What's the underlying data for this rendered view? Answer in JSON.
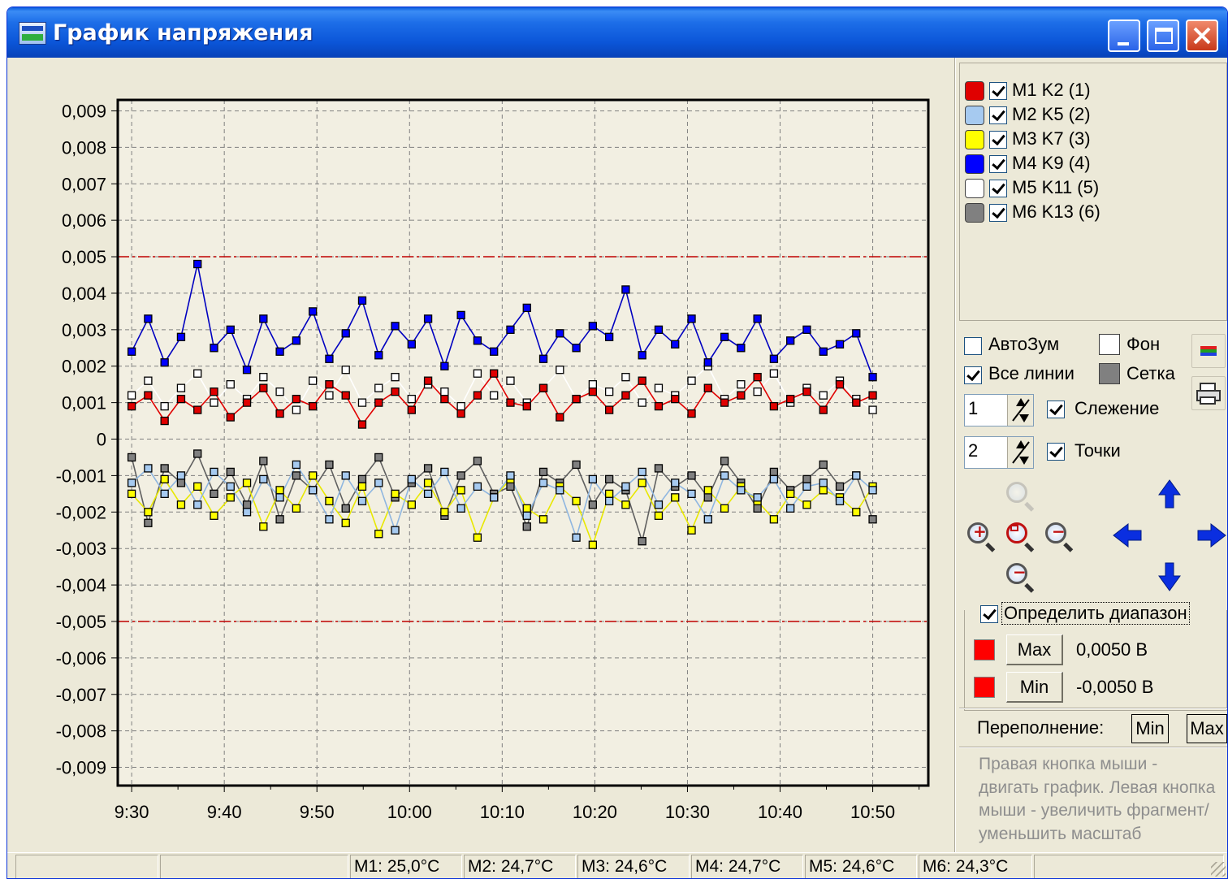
{
  "window": {
    "title": "График напряжения"
  },
  "legend": {
    "items": [
      {
        "label": "M1 K2 (1)",
        "color": "#e00000",
        "checked": true
      },
      {
        "label": "M2 K5 (2)",
        "color": "#a6caf0",
        "checked": true
      },
      {
        "label": "M3 K7 (3)",
        "color": "#ffff00",
        "checked": true
      },
      {
        "label": "M4 K9 (4)",
        "color": "#0000ff",
        "checked": true
      },
      {
        "label": "M5 K11 (5)",
        "color": "#ffffff",
        "checked": true
      },
      {
        "label": "M6 K13 (6)",
        "color": "#808080",
        "checked": true
      }
    ]
  },
  "options": {
    "autozoom_label": "АвтоЗум",
    "autozoom_checked": false,
    "background_label": "Фон",
    "all_lines_label": "Все линии",
    "all_lines_checked": true,
    "grid_label": "Сетка",
    "tracking_value": "1",
    "tracking_label": "Слежение",
    "tracking_checked": true,
    "points_value": "2",
    "points_label": "Точки",
    "points_checked": true
  },
  "range": {
    "define_label": "Определить диапазон",
    "define_checked": true,
    "max_button": "Max",
    "max_value": "0,0050 В",
    "min_button": "Min",
    "min_value": "-0,0050 В",
    "marker_color": "#ff0000"
  },
  "overflow": {
    "label": "Переполнение:",
    "min_button": "Min",
    "max_button": "Max"
  },
  "hint": {
    "text": "Правая кнопка мыши - двигать график. Левая кнопка мыши - увеличить фрагмент/ уменьшить масштаб"
  },
  "statusbar": {
    "cells": [
      "",
      "",
      "M1: 25,0°C",
      "M2: 24,7°C",
      "M3: 24,6°C",
      "M4: 24,7°C",
      "M5: 24,6°C",
      "M6: 24,3°C",
      ""
    ]
  },
  "chart_data": {
    "type": "line",
    "title": "",
    "xlabel": "",
    "ylabel": "",
    "x_ticks": [
      "9:30",
      "9:40",
      "9:50",
      "10:00",
      "10:10",
      "10:20",
      "10:30",
      "10:40",
      "10:50"
    ],
    "y_ticks": [
      "0,009",
      "0,008",
      "0,007",
      "0,006",
      "0,005",
      "0,004",
      "0,003",
      "0,002",
      "0,001",
      "0",
      "-0,001",
      "-0,002",
      "-0,003",
      "-0,004",
      "-0,005",
      "-0,006",
      "-0,007",
      "-0,008",
      "-0,009"
    ],
    "ylim": [
      -0.0095,
      0.0093
    ],
    "xlim_minutes_from_9_30": [
      -1.5,
      86
    ],
    "threshold_max": 0.005,
    "threshold_min": -0.005,
    "threshold_color": "#c00000",
    "grid": true,
    "series": [
      {
        "name": "M1 K2 (1)",
        "color": "#e00000",
        "line_color": "#e00000",
        "values": [
          0.0009,
          0.0012,
          0.0005,
          0.0011,
          0.0008,
          0.0013,
          0.0006,
          0.001,
          0.0014,
          0.0007,
          0.0011,
          0.0009,
          0.0015,
          0.0012,
          0.0004,
          0.001,
          0.0013,
          0.0008,
          0.0016,
          0.0011,
          0.0007,
          0.0012,
          0.0018,
          0.001,
          0.0009,
          0.0014,
          0.0006,
          0.0011,
          0.0013,
          0.0008,
          0.0012,
          0.0016,
          0.0009,
          0.0011,
          0.0007,
          0.0014,
          0.001,
          0.0012,
          0.0017,
          0.0009,
          0.0011,
          0.0013,
          0.0008,
          0.0015,
          0.001,
          0.0012
        ]
      },
      {
        "name": "M2 K5 (2)",
        "color": "#a6caf0",
        "line_color": "#8fb6e0",
        "values": [
          -0.0012,
          -0.0008,
          -0.0015,
          -0.001,
          -0.0018,
          -0.0009,
          -0.0013,
          -0.002,
          -0.0011,
          -0.0016,
          -0.0007,
          -0.0014,
          -0.0022,
          -0.001,
          -0.0017,
          -0.0012,
          -0.0025,
          -0.0011,
          -0.0015,
          -0.0009,
          -0.0019,
          -0.0013,
          -0.0016,
          -0.001,
          -0.0021,
          -0.0012,
          -0.0014,
          -0.0027,
          -0.0011,
          -0.0017,
          -0.0013,
          -0.0009,
          -0.0018,
          -0.0012,
          -0.0015,
          -0.0022,
          -0.001,
          -0.0014,
          -0.0016,
          -0.0011,
          -0.0019,
          -0.0013,
          -0.0012,
          -0.0017,
          -0.001,
          -0.0014
        ]
      },
      {
        "name": "M3 K7 (3)",
        "color": "#ffff00",
        "line_color": "#e8e800",
        "values": [
          -0.0015,
          -0.002,
          -0.0011,
          -0.0018,
          -0.0013,
          -0.0021,
          -0.0016,
          -0.0012,
          -0.0024,
          -0.0014,
          -0.0019,
          -0.001,
          -0.0017,
          -0.0023,
          -0.0013,
          -0.0026,
          -0.0015,
          -0.0018,
          -0.0012,
          -0.002,
          -0.0014,
          -0.0027,
          -0.0016,
          -0.0011,
          -0.0019,
          -0.0022,
          -0.0013,
          -0.0017,
          -0.0029,
          -0.0015,
          -0.0018,
          -0.0012,
          -0.0021,
          -0.0016,
          -0.0025,
          -0.0014,
          -0.0019,
          -0.0013,
          -0.0017,
          -0.0022,
          -0.0015,
          -0.0018,
          -0.0014,
          -0.0016,
          -0.002,
          -0.0013
        ]
      },
      {
        "name": "M4 K9 (4)",
        "color": "#0000ff",
        "line_color": "#0000c0",
        "values": [
          0.0024,
          0.0033,
          0.0021,
          0.0028,
          0.0048,
          0.0025,
          0.003,
          0.0019,
          0.0033,
          0.0024,
          0.0027,
          0.0035,
          0.0022,
          0.0029,
          0.0038,
          0.0023,
          0.0031,
          0.0026,
          0.0033,
          0.002,
          0.0034,
          0.0027,
          0.0024,
          0.003,
          0.0036,
          0.0022,
          0.0029,
          0.0025,
          0.0031,
          0.0028,
          0.0041,
          0.0023,
          0.003,
          0.0026,
          0.0033,
          0.0021,
          0.0028,
          0.0025,
          0.0033,
          0.0022,
          0.0027,
          0.003,
          0.0024,
          0.0026,
          0.0029,
          0.0017
        ]
      },
      {
        "name": "M5 K11 (5)",
        "color": "#ffffff",
        "line_color": "#ffffff",
        "values": [
          0.0012,
          0.0016,
          0.0009,
          0.0014,
          0.0018,
          0.001,
          0.0015,
          0.0011,
          0.0017,
          0.0013,
          0.0008,
          0.0016,
          0.0012,
          0.0019,
          0.001,
          0.0014,
          0.0017,
          0.0011,
          0.0015,
          0.0013,
          0.0009,
          0.0018,
          0.0012,
          0.0016,
          0.001,
          0.0014,
          0.0019,
          0.0011,
          0.0015,
          0.0013,
          0.0017,
          0.001,
          0.0014,
          0.0012,
          0.0016,
          0.002,
          0.0011,
          0.0015,
          0.0013,
          0.0018,
          0.001,
          0.0014,
          0.0012,
          0.0016,
          0.0011,
          0.0008
        ]
      },
      {
        "name": "M6 K13 (6)",
        "color": "#808080",
        "line_color": "#606060",
        "values": [
          -0.0005,
          -0.0023,
          -0.0008,
          -0.0012,
          -0.0004,
          -0.0015,
          -0.0009,
          -0.0018,
          -0.0006,
          -0.0022,
          -0.001,
          -0.0014,
          -0.0007,
          -0.0019,
          -0.0011,
          -0.0005,
          -0.0016,
          -0.0012,
          -0.0008,
          -0.0021,
          -0.001,
          -0.0006,
          -0.0015,
          -0.0013,
          -0.0024,
          -0.0009,
          -0.0012,
          -0.0007,
          -0.0018,
          -0.0011,
          -0.0014,
          -0.0028,
          -0.0008,
          -0.0013,
          -0.001,
          -0.0016,
          -0.0006,
          -0.0012,
          -0.0019,
          -0.0009,
          -0.0014,
          -0.0011,
          -0.0007,
          -0.0013,
          -0.001,
          -0.0022
        ]
      }
    ]
  }
}
